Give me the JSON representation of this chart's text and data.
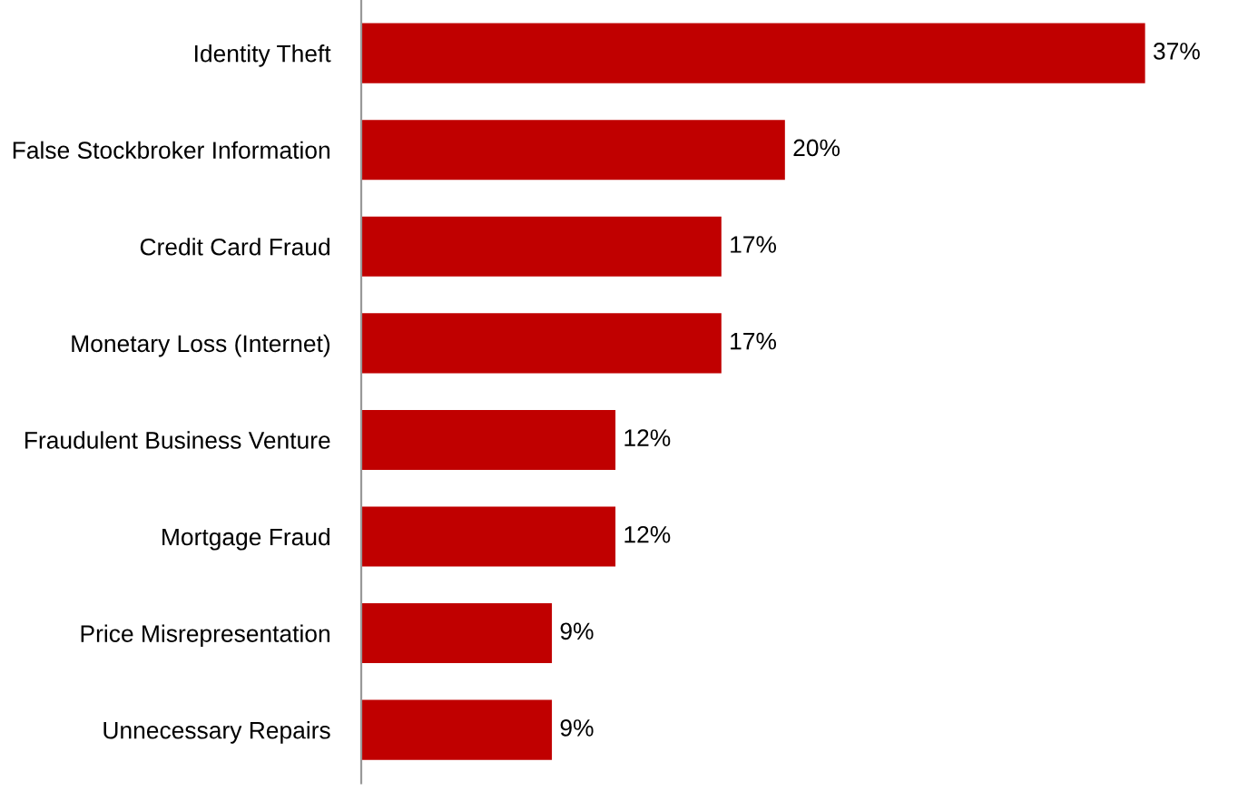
{
  "chart_data": {
    "type": "bar",
    "orientation": "horizontal",
    "categories": [
      "Identity Theft",
      "False Stockbroker Information",
      "Credit Card Fraud",
      "Monetary Loss (Internet)",
      "Fraudulent Business Venture",
      "Mortgage Fraud",
      "Price Misrepresentation",
      "Unnecessary Repairs"
    ],
    "values": [
      37,
      20,
      17,
      17,
      12,
      12,
      9,
      9
    ],
    "value_labels": [
      "37%",
      "20%",
      "17%",
      "17%",
      "12%",
      "12%",
      "9%",
      "9%"
    ],
    "color": "#c00000",
    "grid": false,
    "legend": false
  }
}
